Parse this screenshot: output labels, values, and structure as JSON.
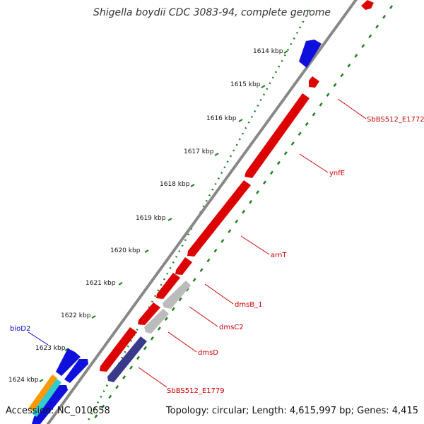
{
  "title": "Shigella boydii CDC 3083-94, complete genome",
  "footer": {
    "accession": "Accession: NC_010658",
    "summary": "Topology: circular; Length: 4,615,997 bp; Genes: 4,415"
  },
  "colors": {
    "forward_gene": "#dd0000",
    "reverse_gene": "#1010dd",
    "grey_gene": "#bbbbbb",
    "purple_gene": "#3a3a8c",
    "orange_gene": "#ff9900",
    "cyan_gene": "#33cccc",
    "backbone": "#888888",
    "gc_ticks": "#1f7f1f",
    "label_red": "#cc0000",
    "label_blue": "#0000cc"
  },
  "ticks": [
    {
      "label": "1614 kbp"
    },
    {
      "label": "1615 kbp"
    },
    {
      "label": "1616 kbp"
    },
    {
      "label": "1617 kbp"
    },
    {
      "label": "1618 kbp"
    },
    {
      "label": "1619 kbp"
    },
    {
      "label": "1620 kbp"
    },
    {
      "label": "1621 kbp"
    },
    {
      "label": "1622 kbp"
    },
    {
      "label": "1623 kbp"
    },
    {
      "label": "1624 kbp"
    }
  ],
  "gene_labels": [
    {
      "name": "SbBS512_E1772",
      "color": "#cc0000"
    },
    {
      "name": "ynfE",
      "color": "#cc0000"
    },
    {
      "name": "arnT",
      "color": "#cc0000"
    },
    {
      "name": "dmsB_1",
      "color": "#cc0000"
    },
    {
      "name": "dmsC2",
      "color": "#cc0000"
    },
    {
      "name": "dmsD",
      "color": "#cc0000"
    },
    {
      "name": "SbBS512_E1779",
      "color": "#cc0000"
    },
    {
      "name": "bioD2",
      "color": "#0000cc"
    }
  ]
}
